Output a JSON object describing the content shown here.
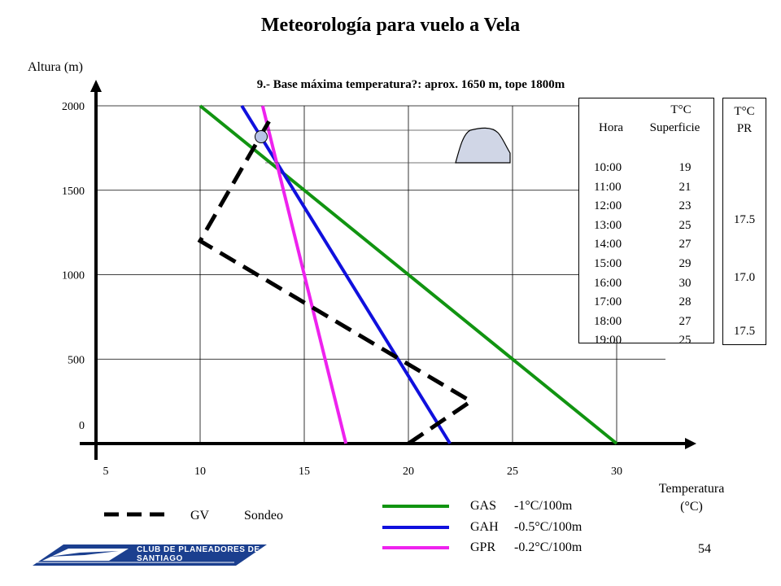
{
  "slide": {
    "title": "Meteorología para vuelo a Vela",
    "page_number": "54",
    "logo_text": "CLUB DE PLANEADORES DE SANTIAGO"
  },
  "colors": {
    "GAS": "#119411",
    "GAH": "#1010dd",
    "GPR": "#ee22ee",
    "GV": "#000000",
    "logo_blue": "#1b3f8f"
  },
  "chart_data": {
    "type": "line",
    "title": "9.- Base máxima temperatura?: aprox. 1650 m, tope 1800m",
    "xlabel": "Temperatura (°C)",
    "xlabel_line1": "Temperatura",
    "xlabel_line2": "(°C)",
    "ylabel": "Altura (m)",
    "xlim": [
      5,
      30
    ],
    "ylim": [
      0,
      2000
    ],
    "x_ticks": [
      "5",
      "10",
      "15",
      "20",
      "25",
      "30"
    ],
    "y_ticks": [
      "0",
      "500",
      "1000",
      "1500",
      "2000"
    ],
    "grid": true,
    "series": [
      {
        "name": "GAS",
        "rate": "-1°C/100m",
        "style": "solid",
        "color": "#119411",
        "points": [
          [
            30,
            0
          ],
          [
            10,
            2000
          ]
        ]
      },
      {
        "name": "GAH",
        "rate": "-0.5°C/100m",
        "style": "solid",
        "color": "#1010dd",
        "points": [
          [
            22,
            0
          ],
          [
            12,
            2000
          ]
        ]
      },
      {
        "name": "GPR",
        "rate": "-0.2°C/100m",
        "style": "solid",
        "color": "#ee22ee",
        "points": [
          [
            17,
            0
          ],
          [
            13,
            2000
          ]
        ]
      },
      {
        "name": "GV",
        "label2": "Sondeo",
        "style": "dashed",
        "color": "#000000",
        "points": [
          [
            20,
            0
          ],
          [
            23,
            250
          ],
          [
            10,
            1200
          ],
          [
            13.5,
            1950
          ]
        ]
      }
    ],
    "annotations": {
      "cloud_base": 1650,
      "cloud_top": 1800,
      "marker": [
        12.9,
        1800
      ]
    },
    "table": {
      "header_top": "T°C",
      "header_hora": "Hora",
      "header_superficie": "Superficie",
      "rows": [
        {
          "hora": "10:00",
          "temp": "19"
        },
        {
          "hora": "11:00",
          "temp": "21"
        },
        {
          "hora": "12:00",
          "temp": "23"
        },
        {
          "hora": "13:00",
          "temp": "25"
        },
        {
          "hora": "14:00",
          "temp": "27"
        },
        {
          "hora": "15:00",
          "temp": "29"
        },
        {
          "hora": "16:00",
          "temp": "30"
        },
        {
          "hora": "17:00",
          "temp": "28"
        },
        {
          "hora": "18:00",
          "temp": "27"
        },
        {
          "hora": "19:00",
          "temp": "25"
        }
      ]
    },
    "pr_table": {
      "header1": "T°C",
      "header2": "PR",
      "values": [
        {
          "row": "13:00",
          "value": "17.5"
        },
        {
          "row": "16:00",
          "value": "17.0"
        },
        {
          "row": "19:00",
          "value": "17.5"
        }
      ]
    }
  }
}
